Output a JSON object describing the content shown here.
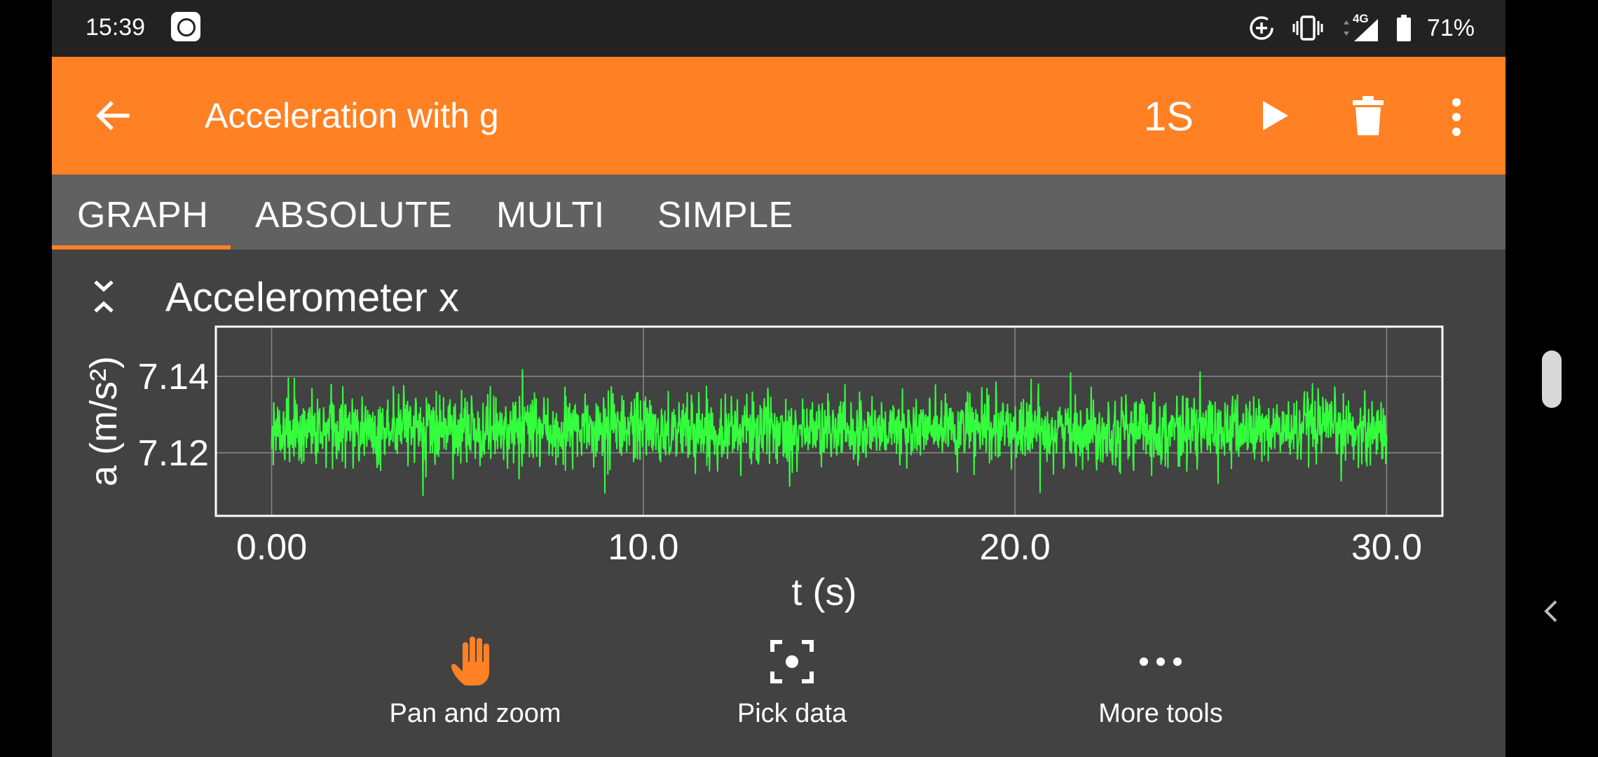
{
  "status_bar": {
    "time": "15:39",
    "network": "4G",
    "battery": "71%"
  },
  "app_bar": {
    "title": "Acceleration with g",
    "rate": "1S",
    "icons": [
      "back-arrow-icon",
      "play-icon",
      "trash-icon",
      "more-vert-icon"
    ]
  },
  "tabs": [
    {
      "label": "GRAPH",
      "selected": true
    },
    {
      "label": "ABSOLUTE",
      "selected": false
    },
    {
      "label": "MULTI",
      "selected": false
    },
    {
      "label": "SIMPLE",
      "selected": false
    }
  ],
  "graph": {
    "title": "Accelerometer x"
  },
  "chart_data": {
    "type": "line",
    "title": "Accelerometer x",
    "xlabel": "t (s)",
    "ylabel": "a (m/s²)",
    "xlim": [
      -1.5,
      31.5
    ],
    "ylim": [
      7.1035,
      7.153
    ],
    "xticks": [
      "0.00",
      "10.0",
      "20.0",
      "30.0"
    ],
    "xtick_values": [
      0,
      10,
      20,
      30
    ],
    "yticks": [
      "7.12",
      "7.14"
    ],
    "ytick_values": [
      7.12,
      7.14
    ],
    "grid": true,
    "series_color": "#33ff3d",
    "x_range": [
      0,
      30
    ],
    "y_mean": 7.126,
    "y_min": 7.104,
    "y_max": 7.15
  },
  "tools": [
    {
      "label": "Pan and zoom",
      "icon": "hand-icon"
    },
    {
      "label": "Pick data",
      "icon": "focus-pick-icon"
    },
    {
      "label": "More tools",
      "icon": "more-horiz-icon"
    }
  ],
  "colors": {
    "accent": "#ff8123",
    "tabbar": "#616161",
    "content": "#424242",
    "statusbar": "#222222"
  }
}
